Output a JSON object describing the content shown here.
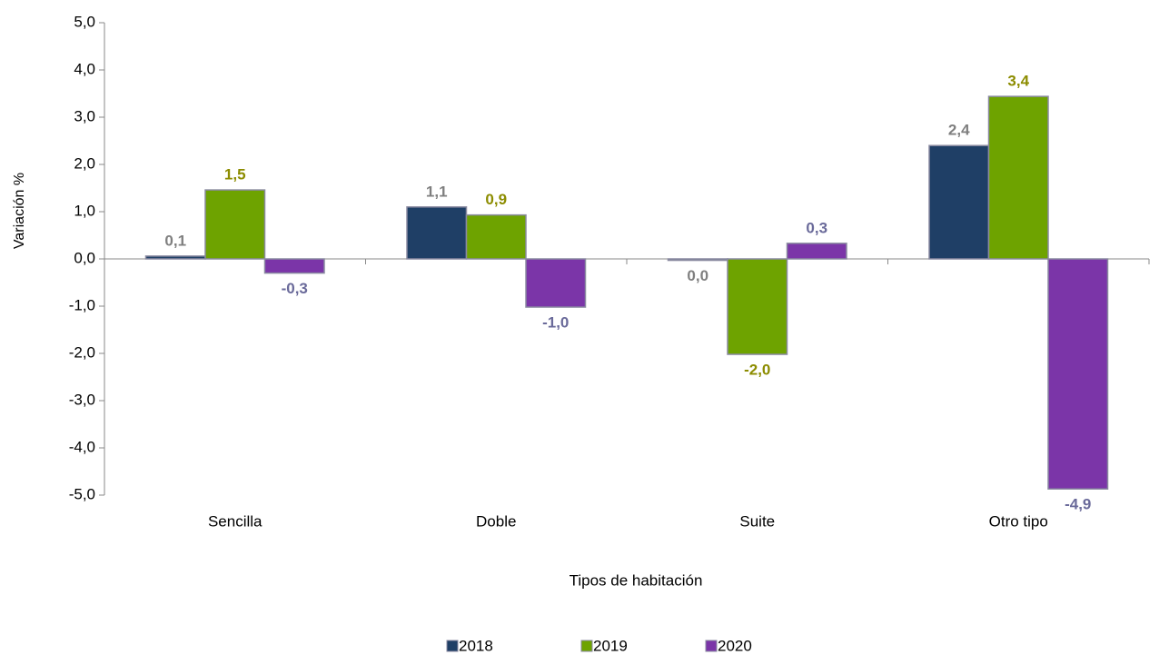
{
  "chart_data": {
    "type": "bar",
    "ylabel": "Variación %",
    "xlabel": "Tipos de habitación",
    "categories": [
      "Sencilla",
      "Doble",
      "Suite",
      "Otro tipo"
    ],
    "series": [
      {
        "name": "2018",
        "color": "#1f3f66",
        "label_color": "#7f7f7f",
        "values": [
          0.06,
          1.1,
          -0.03,
          2.4
        ],
        "value_labels": [
          "0,1",
          "1,1",
          "0,0",
          "2,4"
        ]
      },
      {
        "name": "2019",
        "color": "#6ea300",
        "label_color": "#8c8c00",
        "values": [
          1.46,
          0.93,
          -2.02,
          3.44
        ],
        "value_labels": [
          "1,5",
          "0,9",
          "-2,0",
          "3,4"
        ]
      },
      {
        "name": "2020",
        "color": "#7b35a8",
        "label_color": "#6a6a9a",
        "values": [
          -0.3,
          -1.02,
          0.33,
          -4.87
        ],
        "value_labels": [
          "-0,3",
          "-1,0",
          "0,3",
          "-4,9"
        ]
      }
    ],
    "ylim": [
      -5,
      5
    ],
    "yticks": [
      {
        "value": 5,
        "label": "5,0"
      },
      {
        "value": 4,
        "label": "4,0"
      },
      {
        "value": 3,
        "label": "3,0"
      },
      {
        "value": 2,
        "label": "2,0"
      },
      {
        "value": 1,
        "label": "1,0"
      },
      {
        "value": 0,
        "label": "0,0"
      },
      {
        "value": -1,
        "label": "-1,0"
      },
      {
        "value": -2,
        "label": "-2,0"
      },
      {
        "value": -3,
        "label": "-3,0"
      },
      {
        "value": -4,
        "label": "-4,0"
      },
      {
        "value": -5,
        "label": "-5,0"
      }
    ],
    "grid": false
  }
}
